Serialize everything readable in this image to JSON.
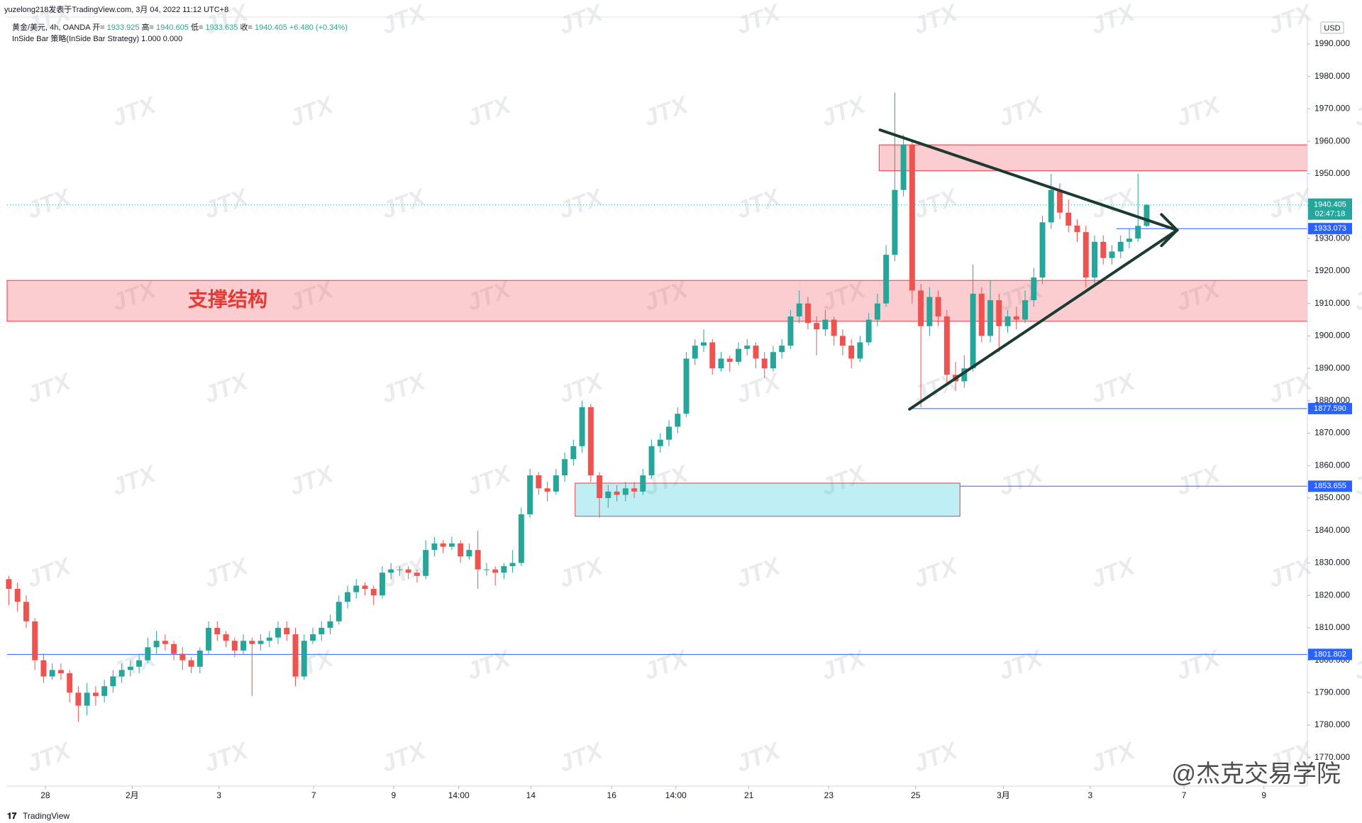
{
  "header": {
    "author": "yuzelong218发表于TradingView.com, 3月 04, 2022 11:12 UTC+8",
    "symbol": "黄金/美元, 4h, OANDA",
    "legend_labels": [
      "开=",
      "高=",
      "低=",
      "收="
    ],
    "change": "+6.480 (+0.34%)",
    "strategy": "InSide Bar 策略(InSide Bar Strategy) 1.000 0.000"
  },
  "watermark": "JTX",
  "signature": "@杰克交易学院",
  "footer": "TradingView",
  "chart_data": {
    "type": "candlestick",
    "currency": "USD",
    "up_color": "#26a69a",
    "down_color": "#ef5350",
    "xlim": [
      -0.2,
      149.5
    ],
    "ylim": [
      1761.2,
      1998.3
    ],
    "xticks": [
      {
        "value": 4.2,
        "label": "28"
      },
      {
        "value": 14.2,
        "label": "2月"
      },
      {
        "value": 24.2,
        "label": "3"
      },
      {
        "value": 35.1,
        "label": "7"
      },
      {
        "value": 44.3,
        "label": "9"
      },
      {
        "value": 51.8,
        "label": "14:00"
      },
      {
        "value": 60.1,
        "label": "14"
      },
      {
        "value": 69.4,
        "label": "16"
      },
      {
        "value": 76.8,
        "label": "14:00"
      },
      {
        "value": 85.2,
        "label": "21"
      },
      {
        "value": 94.4,
        "label": "23"
      },
      {
        "value": 104.4,
        "label": "25"
      },
      {
        "value": 114.5,
        "label": "3月"
      },
      {
        "value": 124.5,
        "label": "3"
      },
      {
        "value": 135.3,
        "label": "7"
      },
      {
        "value": 144.5,
        "label": "9"
      }
    ],
    "yticks": [
      {
        "value": 1770,
        "label": "1770.000"
      },
      {
        "value": 1780,
        "label": "1780.000"
      },
      {
        "value": 1790,
        "label": "1790.000"
      },
      {
        "value": 1800,
        "label": "1800.000"
      },
      {
        "value": 1810,
        "label": "1810.000"
      },
      {
        "value": 1820,
        "label": "1820.000"
      },
      {
        "value": 1830,
        "label": "1830.000"
      },
      {
        "value": 1840,
        "label": "1840.000"
      },
      {
        "value": 1850,
        "label": "1850.000"
      },
      {
        "value": 1860,
        "label": "1860.000"
      },
      {
        "value": 1870,
        "label": "1870.000"
      },
      {
        "value": 1880,
        "label": "1880.000"
      },
      {
        "value": 1890,
        "label": "1890.000"
      },
      {
        "value": 1900,
        "label": "1900.000"
      },
      {
        "value": 1910,
        "label": "1910.000"
      },
      {
        "value": 1920,
        "label": "1920.000"
      },
      {
        "value": 1930,
        "label": "1930.000"
      },
      {
        "value": 1940,
        "label": "1940.000"
      },
      {
        "value": 1950,
        "label": "1950.000"
      },
      {
        "value": 1960,
        "label": "1960.000"
      },
      {
        "value": 1970,
        "label": "1970.000"
      },
      {
        "value": 1980,
        "label": "1980.000"
      },
      {
        "value": 1990,
        "label": "1990.000"
      }
    ],
    "ohlc": [
      [
        1825,
        1826,
        1817,
        1822
      ],
      [
        1822,
        1824,
        1815,
        1818
      ],
      [
        1818,
        1820,
        1810,
        1812
      ],
      [
        1812,
        1813,
        1797,
        1800
      ],
      [
        1800,
        1802,
        1793,
        1795
      ],
      [
        1795,
        1799,
        1794,
        1797
      ],
      [
        1797,
        1799,
        1794,
        1796
      ],
      [
        1796,
        1797,
        1787,
        1790
      ],
      [
        1790,
        1792,
        1781,
        1786
      ],
      [
        1786,
        1793,
        1783,
        1790
      ],
      [
        1790,
        1792,
        1786,
        1789
      ],
      [
        1789,
        1794,
        1787,
        1792
      ],
      [
        1792,
        1797,
        1790,
        1795
      ],
      [
        1795,
        1799,
        1793,
        1797
      ],
      [
        1797,
        1800,
        1795,
        1798
      ],
      [
        1798,
        1802,
        1796,
        1800
      ],
      [
        1800,
        1807,
        1799,
        1804
      ],
      [
        1804,
        1809,
        1802,
        1806
      ],
      [
        1806,
        1808,
        1803,
        1805
      ],
      [
        1805,
        1806,
        1800,
        1802
      ],
      [
        1802,
        1804,
        1797,
        1800
      ],
      [
        1800,
        1801,
        1796,
        1798
      ],
      [
        1798,
        1804,
        1796,
        1803
      ],
      [
        1803,
        1812,
        1802,
        1810
      ],
      [
        1810,
        1812,
        1806,
        1808
      ],
      [
        1808,
        1809,
        1804,
        1806
      ],
      [
        1806,
        1807,
        1801,
        1803
      ],
      [
        1803,
        1808,
        1802,
        1806
      ],
      [
        1806,
        1807,
        1789,
        1805
      ],
      [
        1805,
        1808,
        1803,
        1806
      ],
      [
        1806,
        1809,
        1804,
        1807
      ],
      [
        1807,
        1812,
        1805,
        1810
      ],
      [
        1810,
        1812,
        1806,
        1808
      ],
      [
        1808,
        1810,
        1792,
        1795
      ],
      [
        1795,
        1808,
        1794,
        1806
      ],
      [
        1806,
        1810,
        1805,
        1808
      ],
      [
        1808,
        1812,
        1806,
        1810
      ],
      [
        1810,
        1814,
        1808,
        1812
      ],
      [
        1812,
        1820,
        1811,
        1818
      ],
      [
        1818,
        1823,
        1816,
        1821
      ],
      [
        1821,
        1825,
        1819,
        1823
      ],
      [
        1823,
        1824,
        1820,
        1822
      ],
      [
        1822,
        1823,
        1817,
        1820
      ],
      [
        1820,
        1829,
        1819,
        1827
      ],
      [
        1827,
        1830,
        1825,
        1828
      ],
      [
        1828,
        1829,
        1826,
        1828
      ],
      [
        1828,
        1829,
        1825,
        1827
      ],
      [
        1827,
        1828,
        1824,
        1826
      ],
      [
        1826,
        1837,
        1825,
        1834
      ],
      [
        1834,
        1838,
        1832,
        1836
      ],
      [
        1836,
        1837,
        1833,
        1835
      ],
      [
        1835,
        1838,
        1834,
        1836
      ],
      [
        1836,
        1837,
        1830,
        1832
      ],
      [
        1832,
        1836,
        1831,
        1834
      ],
      [
        1834,
        1840,
        1822,
        1828
      ],
      [
        1828,
        1830,
        1826,
        1828
      ],
      [
        1828,
        1829,
        1823,
        1827
      ],
      [
        1827,
        1830,
        1825,
        1829
      ],
      [
        1829,
        1834,
        1827,
        1830
      ],
      [
        1830,
        1847,
        1829,
        1845
      ],
      [
        1845,
        1859,
        1844,
        1857
      ],
      [
        1857,
        1858,
        1851,
        1853
      ],
      [
        1853,
        1855,
        1849,
        1852
      ],
      [
        1852,
        1859,
        1851,
        1857
      ],
      [
        1857,
        1864,
        1855,
        1862
      ],
      [
        1862,
        1868,
        1860,
        1866
      ],
      [
        1866,
        1880,
        1864,
        1878
      ],
      [
        1878,
        1879,
        1855,
        1857
      ],
      [
        1857,
        1858,
        1844,
        1850
      ],
      [
        1850,
        1854,
        1847,
        1852
      ],
      [
        1852,
        1854,
        1849,
        1851
      ],
      [
        1851,
        1855,
        1849,
        1853
      ],
      [
        1853,
        1855,
        1850,
        1852
      ],
      [
        1852,
        1859,
        1851,
        1857
      ],
      [
        1857,
        1868,
        1856,
        1866
      ],
      [
        1866,
        1870,
        1864,
        1868
      ],
      [
        1868,
        1874,
        1866,
        1872
      ],
      [
        1872,
        1878,
        1870,
        1876
      ],
      [
        1876,
        1895,
        1875,
        1893
      ],
      [
        1893,
        1899,
        1891,
        1897
      ],
      [
        1897,
        1902,
        1895,
        1898
      ],
      [
        1898,
        1899,
        1888,
        1890
      ],
      [
        1890,
        1895,
        1889,
        1893
      ],
      [
        1893,
        1894,
        1889,
        1892
      ],
      [
        1892,
        1898,
        1891,
        1896
      ],
      [
        1896,
        1899,
        1894,
        1897
      ],
      [
        1897,
        1898,
        1890,
        1893
      ],
      [
        1893,
        1895,
        1887,
        1890
      ],
      [
        1890,
        1897,
        1889,
        1895
      ],
      [
        1895,
        1899,
        1893,
        1897
      ],
      [
        1897,
        1908,
        1896,
        1906
      ],
      [
        1906,
        1914,
        1904,
        1910
      ],
      [
        1910,
        1912,
        1902,
        1904
      ],
      [
        1904,
        1906,
        1894,
        1902
      ],
      [
        1902,
        1908,
        1900,
        1905
      ],
      [
        1905,
        1906,
        1897,
        1900
      ],
      [
        1900,
        1902,
        1894,
        1897
      ],
      [
        1897,
        1899,
        1890,
        1893
      ],
      [
        1893,
        1900,
        1892,
        1898
      ],
      [
        1898,
        1907,
        1897,
        1905
      ],
      [
        1905,
        1913,
        1903,
        1910
      ],
      [
        1910,
        1928,
        1909,
        1925
      ],
      [
        1925,
        1975,
        1923,
        1945
      ],
      [
        1945,
        1962,
        1943,
        1959
      ],
      [
        1959,
        1960,
        1910,
        1914
      ],
      [
        1914,
        1916,
        1878,
        1903
      ],
      [
        1903,
        1915,
        1900,
        1912
      ],
      [
        1912,
        1914,
        1903,
        1906
      ],
      [
        1906,
        1908,
        1885,
        1888
      ],
      [
        1888,
        1892,
        1883,
        1886
      ],
      [
        1886,
        1894,
        1884,
        1890
      ],
      [
        1890,
        1922,
        1889,
        1913
      ],
      [
        1913,
        1915,
        1898,
        1900
      ],
      [
        1900,
        1917,
        1898,
        1911
      ],
      [
        1911,
        1913,
        1895,
        1903
      ],
      [
        1903,
        1908,
        1901,
        1906
      ],
      [
        1906,
        1909,
        1902,
        1905
      ],
      [
        1905,
        1914,
        1904,
        1911
      ],
      [
        1911,
        1921,
        1909,
        1918
      ],
      [
        1918,
        1937,
        1916,
        1935
      ],
      [
        1935,
        1950,
        1933,
        1945
      ],
      [
        1945,
        1947,
        1936,
        1938
      ],
      [
        1938,
        1942,
        1932,
        1934
      ],
      [
        1934,
        1936,
        1929,
        1932
      ],
      [
        1932,
        1934,
        1915,
        1918
      ],
      [
        1918,
        1931,
        1916,
        1929
      ],
      [
        1929,
        1931,
        1922,
        1924
      ],
      [
        1924,
        1928,
        1922,
        1926
      ],
      [
        1926,
        1931,
        1924,
        1929
      ],
      [
        1929,
        1933,
        1927,
        1930
      ],
      [
        1930,
        1950,
        1929,
        1933.925
      ],
      [
        1933.925,
        1940.605,
        1933.635,
        1940.405
      ]
    ],
    "current_price": 1940.405,
    "countdown": "02:47:18",
    "price_lines": [
      {
        "value": 1933.073,
        "from": 127.5
      },
      {
        "value": 1877.59,
        "label": "1877.590",
        "from": 103.7
      },
      {
        "value": 1853.655,
        "from": 109.5
      },
      {
        "value": 1801.802,
        "from": -0.2
      }
    ],
    "zones": [
      {
        "from": -0.2,
        "to": 149.5,
        "low": 1904.5,
        "high": 1917.1,
        "color": "#f23645",
        "label": "支撑结构"
      },
      {
        "from": 100.2,
        "to": 149.5,
        "low": 1950.9,
        "high": 1958.9,
        "color": "#f23645"
      },
      {
        "from": 65.2,
        "to": 109.5,
        "low": 1844.4,
        "high": 1854.6,
        "color": "#00bcd4"
      }
    ],
    "trendlines": [
      {
        "from": [
          100.3,
          1963.5
        ],
        "to": [
          134.5,
          1932.6
        ]
      },
      {
        "from": [
          103.7,
          1877.4
        ],
        "to": [
          134.5,
          1932.6
        ]
      }
    ]
  }
}
